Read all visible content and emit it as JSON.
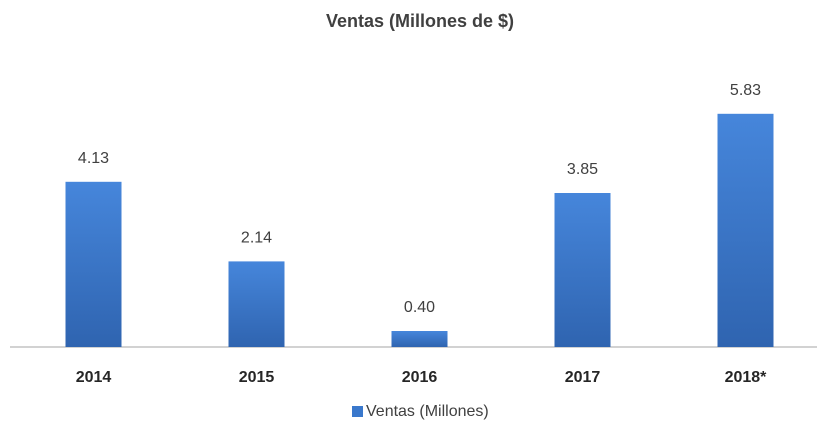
{
  "chart_data": {
    "type": "bar",
    "title": "Ventas (Millones de $)",
    "categories": [
      "2014",
      "2015",
      "2016",
      "2017",
      "2018*"
    ],
    "series": [
      {
        "name": "Ventas (Millones)",
        "color": "#3a78cc",
        "values": [
          4.13,
          2.14,
          0.4,
          3.85,
          5.83
        ],
        "value_labels": [
          "4.13",
          "2.14",
          "0.40",
          "3.85",
          "5.83"
        ]
      }
    ],
    "ylim": [
      0,
      7
    ],
    "legend": "bottom"
  }
}
